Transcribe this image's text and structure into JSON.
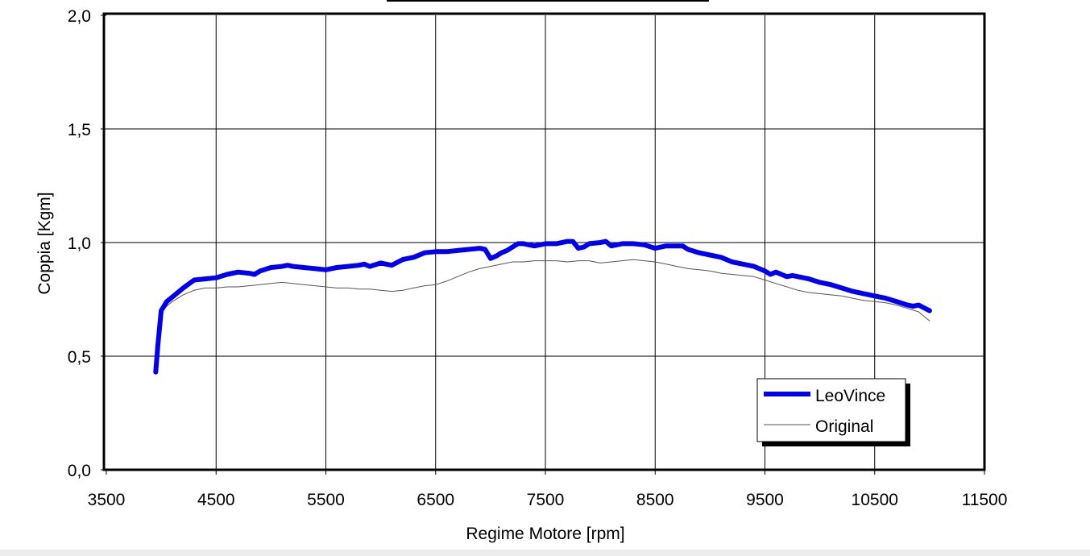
{
  "chart_data": {
    "type": "line",
    "title": "",
    "xlabel": "Regime Motore [rpm]",
    "ylabel": "Coppia [Kgm]",
    "xlim": [
      3500,
      11500
    ],
    "ylim": [
      0.0,
      2.0
    ],
    "xticks": [
      3500,
      4500,
      5500,
      6500,
      7500,
      8500,
      9500,
      10500,
      11500
    ],
    "xtick_labels": [
      "3500",
      "4500",
      "5500",
      "6500",
      "7500",
      "8500",
      "9500",
      "10500",
      "11500"
    ],
    "yticks": [
      0.0,
      0.5,
      1.0,
      1.5,
      2.0
    ],
    "ytick_labels": [
      "0,0",
      "0,5",
      "1,0",
      "1,5",
      "2,0"
    ],
    "grid": true,
    "legend_position": "bottom-right",
    "series": [
      {
        "name": "LeoVince",
        "color": "#0000ee",
        "x": [
          3950,
          3970,
          4000,
          4050,
          4100,
          4200,
          4300,
          4400,
          4500,
          4600,
          4700,
          4800,
          4850,
          4900,
          5000,
          5100,
          5150,
          5200,
          5300,
          5400,
          5500,
          5600,
          5700,
          5800,
          5850,
          5900,
          6000,
          6100,
          6200,
          6300,
          6400,
          6500,
          6600,
          6700,
          6800,
          6900,
          6950,
          7000,
          7050,
          7100,
          7150,
          7200,
          7250,
          7300,
          7400,
          7500,
          7600,
          7700,
          7750,
          7800,
          7850,
          7900,
          8000,
          8050,
          8100,
          8150,
          8200,
          8300,
          8400,
          8500,
          8600,
          8700,
          8750,
          8800,
          8900,
          9000,
          9100,
          9200,
          9300,
          9400,
          9500,
          9550,
          9600,
          9650,
          9700,
          9750,
          9800,
          9900,
          10000,
          10100,
          10200,
          10300,
          10400,
          10500,
          10600,
          10700,
          10800,
          10850,
          10900,
          11000
        ],
        "y": [
          0.43,
          0.55,
          0.7,
          0.74,
          0.76,
          0.8,
          0.835,
          0.84,
          0.845,
          0.86,
          0.87,
          0.865,
          0.86,
          0.875,
          0.89,
          0.895,
          0.9,
          0.895,
          0.89,
          0.885,
          0.88,
          0.89,
          0.895,
          0.9,
          0.905,
          0.895,
          0.91,
          0.9,
          0.925,
          0.935,
          0.955,
          0.96,
          0.96,
          0.965,
          0.97,
          0.975,
          0.97,
          0.93,
          0.94,
          0.955,
          0.965,
          0.98,
          0.995,
          0.995,
          0.985,
          0.995,
          0.995,
          1.005,
          1.005,
          0.975,
          0.98,
          0.995,
          1.0,
          1.005,
          0.985,
          0.99,
          0.995,
          0.995,
          0.99,
          0.975,
          0.985,
          0.985,
          0.985,
          0.97,
          0.955,
          0.945,
          0.935,
          0.915,
          0.905,
          0.895,
          0.875,
          0.86,
          0.87,
          0.86,
          0.85,
          0.855,
          0.85,
          0.84,
          0.825,
          0.815,
          0.8,
          0.785,
          0.775,
          0.765,
          0.755,
          0.74,
          0.725,
          0.72,
          0.725,
          0.7
        ]
      },
      {
        "name": "Original",
        "color": "#555555",
        "x": [
          3950,
          3970,
          4000,
          4050,
          4100,
          4200,
          4300,
          4400,
          4500,
          4600,
          4700,
          4800,
          4900,
          5000,
          5100,
          5200,
          5300,
          5400,
          5500,
          5600,
          5700,
          5800,
          5900,
          6000,
          6100,
          6200,
          6300,
          6400,
          6500,
          6600,
          6700,
          6800,
          6900,
          7000,
          7100,
          7200,
          7300,
          7400,
          7500,
          7600,
          7700,
          7800,
          7900,
          8000,
          8100,
          8200,
          8300,
          8400,
          8500,
          8600,
          8700,
          8800,
          8900,
          9000,
          9100,
          9200,
          9300,
          9400,
          9500,
          9600,
          9700,
          9800,
          9900,
          10000,
          10100,
          10200,
          10300,
          10400,
          10500,
          10600,
          10700,
          10800,
          10900,
          11000
        ],
        "y": [
          0.43,
          0.55,
          0.69,
          0.72,
          0.74,
          0.77,
          0.79,
          0.8,
          0.8,
          0.805,
          0.805,
          0.81,
          0.815,
          0.82,
          0.825,
          0.82,
          0.815,
          0.81,
          0.805,
          0.8,
          0.8,
          0.795,
          0.795,
          0.79,
          0.785,
          0.79,
          0.8,
          0.81,
          0.815,
          0.83,
          0.85,
          0.87,
          0.885,
          0.895,
          0.905,
          0.915,
          0.915,
          0.92,
          0.92,
          0.92,
          0.915,
          0.92,
          0.92,
          0.91,
          0.915,
          0.92,
          0.925,
          0.92,
          0.915,
          0.905,
          0.895,
          0.885,
          0.88,
          0.875,
          0.865,
          0.86,
          0.855,
          0.85,
          0.835,
          0.82,
          0.805,
          0.79,
          0.78,
          0.775,
          0.77,
          0.765,
          0.755,
          0.745,
          0.74,
          0.735,
          0.725,
          0.71,
          0.695,
          0.655
        ]
      }
    ]
  }
}
